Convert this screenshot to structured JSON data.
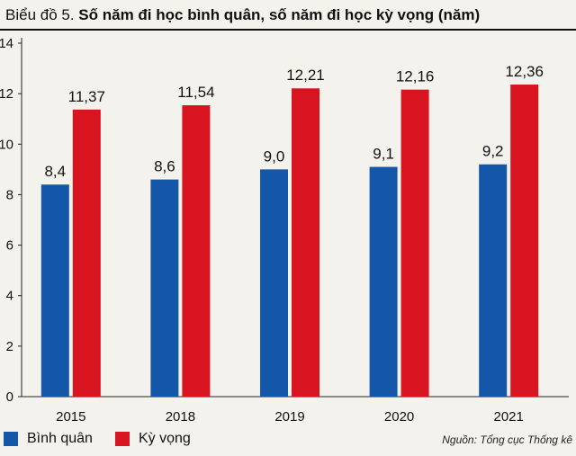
{
  "title": {
    "prefix": "Biểu đồ 5.",
    "main": "Số năm đi học bình quân, số năm đi học kỳ vọng (năm)"
  },
  "source": "Nguồn: Tổng cục Thống kê",
  "colors": {
    "binh_quan": "#1457a8",
    "ky_vong": "#d7141f"
  },
  "chart_data": {
    "type": "bar",
    "title": "Số năm đi học bình quân, số năm đi học kỳ vọng (năm)",
    "categories": [
      "2015",
      "2018",
      "2019",
      "2020",
      "2021"
    ],
    "series": [
      {
        "name": "Bình quân",
        "values": [
          8.4,
          8.6,
          9.0,
          9.1,
          9.2
        ],
        "labels": [
          "8,4",
          "8,6",
          "9,0",
          "9,1",
          "9,2"
        ]
      },
      {
        "name": "Kỳ vọng",
        "values": [
          11.37,
          11.54,
          12.21,
          12.16,
          12.36
        ],
        "labels": [
          "11,37",
          "11,54",
          "12,21",
          "12,16",
          "12,36"
        ]
      }
    ],
    "y_ticks": [
      0,
      2,
      4,
      6,
      8,
      10,
      12,
      14
    ],
    "ylim": [
      0,
      14
    ],
    "xlabel": "",
    "ylabel": "",
    "grid": false,
    "legend_position": "bottom-left"
  }
}
